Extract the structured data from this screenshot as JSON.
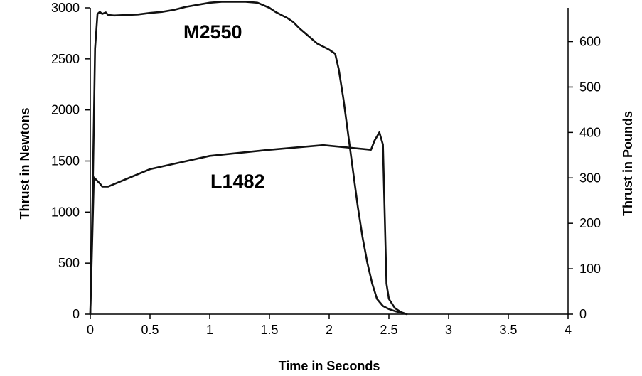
{
  "chart_data": {
    "type": "line",
    "title": "",
    "xlabel": "Time in Seconds",
    "ylabel": "Thrust in Newtons",
    "y2label": "Thrust in Pounds",
    "xlim": [
      0,
      4
    ],
    "ylim": [
      0,
      3000
    ],
    "y2lim": [
      0,
      674.4
    ],
    "x_ticks": [
      "0",
      "0.5",
      "1",
      "1.5",
      "2",
      "2.5",
      "3",
      "3.5",
      "4"
    ],
    "y_ticks": [
      "0",
      "500",
      "1000",
      "1500",
      "2000",
      "2500",
      "3000"
    ],
    "y2_ticks": [
      "0",
      "100",
      "200",
      "300",
      "400",
      "500",
      "600"
    ],
    "grid": false,
    "legend": "none",
    "series": [
      {
        "name": "M2550",
        "color": "#111111",
        "points": [
          [
            0.0,
            0
          ],
          [
            0.02,
            1200
          ],
          [
            0.04,
            2600
          ],
          [
            0.06,
            2940
          ],
          [
            0.08,
            2960
          ],
          [
            0.1,
            2940
          ],
          [
            0.13,
            2955
          ],
          [
            0.15,
            2930
          ],
          [
            0.2,
            2925
          ],
          [
            0.3,
            2930
          ],
          [
            0.4,
            2935
          ],
          [
            0.5,
            2950
          ],
          [
            0.6,
            2960
          ],
          [
            0.7,
            2980
          ],
          [
            0.8,
            3010
          ],
          [
            0.9,
            3030
          ],
          [
            1.0,
            3050
          ],
          [
            1.1,
            3060
          ],
          [
            1.2,
            3060
          ],
          [
            1.3,
            3060
          ],
          [
            1.4,
            3050
          ],
          [
            1.5,
            3000
          ],
          [
            1.55,
            2960
          ],
          [
            1.6,
            2930
          ],
          [
            1.65,
            2900
          ],
          [
            1.7,
            2860
          ],
          [
            1.75,
            2800
          ],
          [
            1.8,
            2750
          ],
          [
            1.85,
            2700
          ],
          [
            1.9,
            2650
          ],
          [
            1.95,
            2620
          ],
          [
            2.0,
            2590
          ],
          [
            2.05,
            2550
          ],
          [
            2.08,
            2400
          ],
          [
            2.12,
            2100
          ],
          [
            2.16,
            1750
          ],
          [
            2.2,
            1400
          ],
          [
            2.24,
            1050
          ],
          [
            2.28,
            750
          ],
          [
            2.32,
            500
          ],
          [
            2.36,
            300
          ],
          [
            2.4,
            150
          ],
          [
            2.45,
            80
          ],
          [
            2.5,
            50
          ],
          [
            2.55,
            30
          ],
          [
            2.6,
            15
          ],
          [
            2.63,
            5
          ]
        ]
      },
      {
        "name": "L1482",
        "color": "#111111",
        "points": [
          [
            0.0,
            0
          ],
          [
            0.03,
            1340
          ],
          [
            0.08,
            1280
          ],
          [
            0.1,
            1250
          ],
          [
            0.15,
            1250
          ],
          [
            0.5,
            1420
          ],
          [
            1.0,
            1550
          ],
          [
            1.5,
            1610
          ],
          [
            1.95,
            1655
          ],
          [
            2.35,
            1610
          ],
          [
            2.38,
            1700
          ],
          [
            2.42,
            1780
          ],
          [
            2.45,
            1660
          ],
          [
            2.48,
            300
          ],
          [
            2.5,
            150
          ],
          [
            2.55,
            60
          ],
          [
            2.6,
            20
          ],
          [
            2.65,
            0
          ]
        ]
      }
    ]
  }
}
